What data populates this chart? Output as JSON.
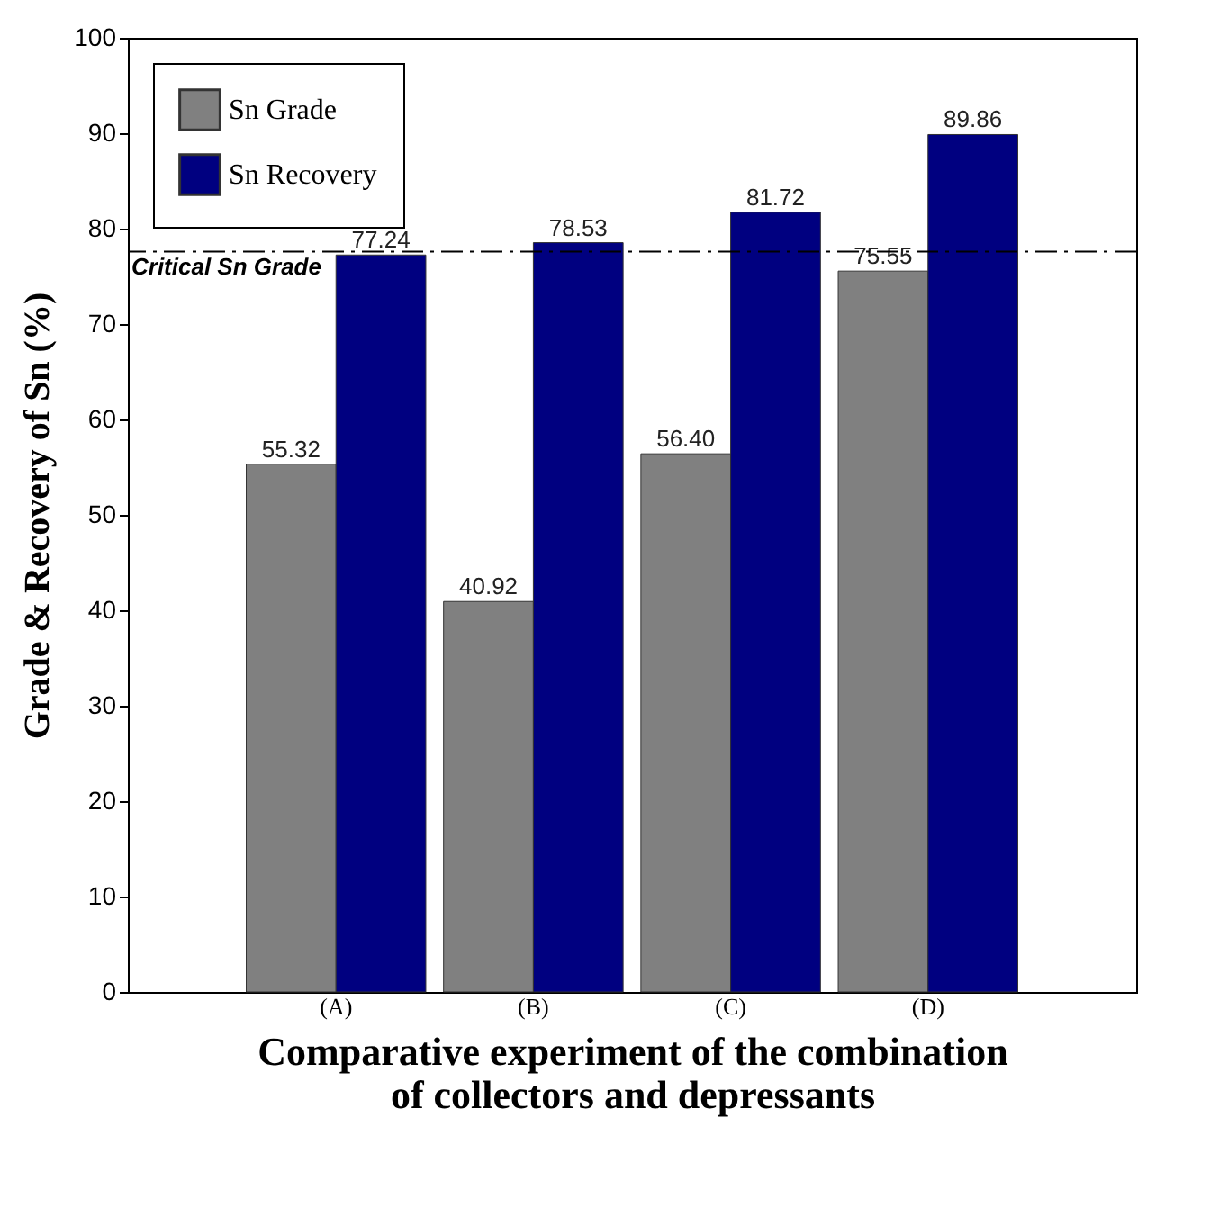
{
  "chart_data": {
    "type": "bar",
    "xlabel": "Comparative experiment of the combination\nof collectors and depressants",
    "ylabel": "Grade & Recovery of Sn (%)",
    "categories": [
      "(A)",
      "(B)",
      "(C)",
      "(D)"
    ],
    "series": [
      {
        "name": "Sn Grade",
        "color": "#808080",
        "values": [
          55.32,
          40.92,
          56.4,
          75.55
        ],
        "value_labels": [
          "55.32",
          "40.92",
          "56.40",
          "75.55"
        ]
      },
      {
        "name": "Sn Recovery",
        "color": "#000080",
        "values": [
          77.24,
          78.53,
          81.72,
          89.86
        ],
        "value_labels": [
          "77.24",
          "78.53",
          "81.72",
          "89.86"
        ]
      }
    ],
    "ylim": [
      0,
      100
    ],
    "yticks": [
      0,
      10,
      20,
      30,
      40,
      50,
      60,
      70,
      80,
      90,
      100
    ],
    "grid": false,
    "legend": "top left",
    "ref_lines": [
      {
        "axis": "y",
        "value": 77.6,
        "label": "Critical Sn Grade",
        "line_style": "dashdot",
        "color": "#000000"
      }
    ]
  }
}
